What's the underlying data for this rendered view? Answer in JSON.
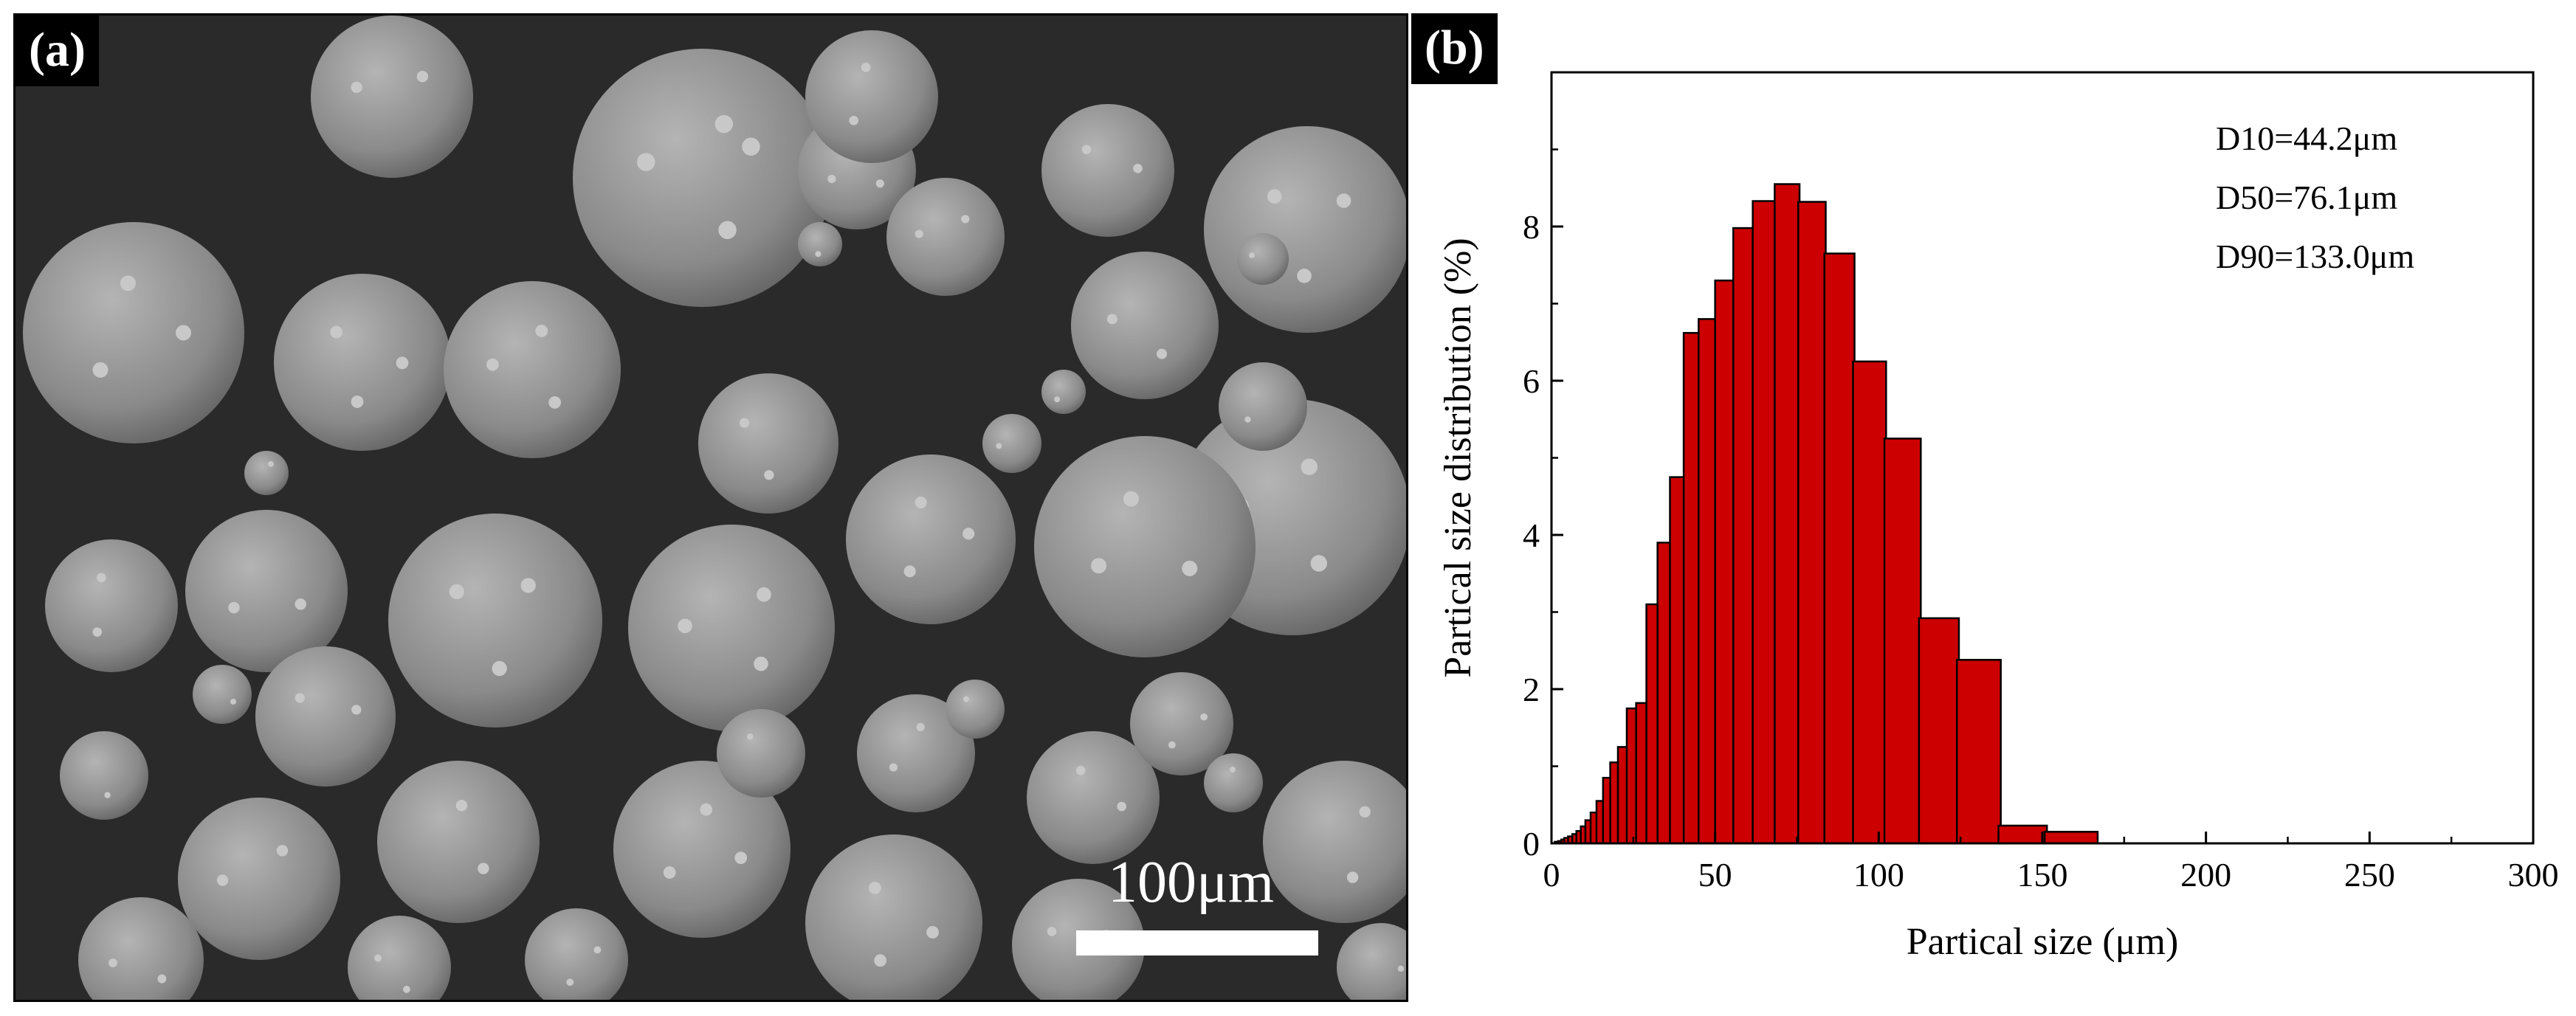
{
  "panel_a": {
    "label": "(a)",
    "scale_bar_text": "100μm"
  },
  "panel_b": {
    "label": "(b)"
  },
  "colors": {
    "bar_fill": "#cc0000",
    "bar_stroke": "#000000",
    "sem_background": "#2a2a2a",
    "particle": "#8c8c8c"
  },
  "chart_data": {
    "type": "bar",
    "xlabel": "Partical size (μm)",
    "ylabel": "Partical size distribution (%)",
    "xlim": [
      0,
      300
    ],
    "ylim": [
      0,
      10
    ],
    "x_ticks": [
      0,
      50,
      100,
      150,
      200,
      250,
      300
    ],
    "y_ticks": [
      0,
      2,
      4,
      6,
      8
    ],
    "annotations": [
      "D10=44.2μm",
      "D50=76.1μm",
      "D90=133.0μm"
    ],
    "grid": false,
    "bars": [
      {
        "x": 1.5,
        "w": 1.0,
        "y": 0.02
      },
      {
        "x": 2.5,
        "w": 1.0,
        "y": 0.03
      },
      {
        "x": 3.5,
        "w": 1.0,
        "y": 0.05
      },
      {
        "x": 4.5,
        "w": 1.2,
        "y": 0.07
      },
      {
        "x": 5.7,
        "w": 1.3,
        "y": 0.09
      },
      {
        "x": 7.0,
        "w": 1.3,
        "y": 0.12
      },
      {
        "x": 8.3,
        "w": 1.4,
        "y": 0.16
      },
      {
        "x": 9.7,
        "w": 1.5,
        "y": 0.22
      },
      {
        "x": 11.2,
        "w": 1.7,
        "y": 0.3
      },
      {
        "x": 12.9,
        "w": 1.9,
        "y": 0.4
      },
      {
        "x": 14.8,
        "w": 2.1,
        "y": 0.55
      },
      {
        "x": 16.9,
        "w": 2.3,
        "y": 0.85
      },
      {
        "x": 19.2,
        "w": 2.5,
        "y": 1.05
      },
      {
        "x": 21.7,
        "w": 2.8,
        "y": 1.25
      },
      {
        "x": 24.5,
        "w": 3.0,
        "y": 1.75
      },
      {
        "x": 27.5,
        "w": 3.3,
        "y": 1.82
      },
      {
        "x": 30.8,
        "w": 3.6,
        "y": 3.1
      },
      {
        "x": 34.4,
        "w": 4.0,
        "y": 3.9
      },
      {
        "x": 38.4,
        "w": 4.4,
        "y": 4.75
      },
      {
        "x": 42.8,
        "w": 4.8,
        "y": 6.62
      },
      {
        "x": 47.6,
        "w": 5.3,
        "y": 6.8
      },
      {
        "x": 52.9,
        "w": 5.8,
        "y": 7.3
      },
      {
        "x": 58.7,
        "w": 6.3,
        "y": 7.98
      },
      {
        "x": 65.0,
        "w": 7.0,
        "y": 8.33
      },
      {
        "x": 72.0,
        "w": 7.6,
        "y": 8.55
      },
      {
        "x": 79.6,
        "w": 8.4,
        "y": 8.32
      },
      {
        "x": 88.0,
        "w": 9.2,
        "y": 7.65
      },
      {
        "x": 97.2,
        "w": 10.1,
        "y": 6.25
      },
      {
        "x": 107.3,
        "w": 11.1,
        "y": 5.25
      },
      {
        "x": 118.4,
        "w": 12.2,
        "y": 2.92
      },
      {
        "x": 130.6,
        "w": 13.4,
        "y": 2.38
      },
      {
        "x": 144.0,
        "w": 14.8,
        "y": 0.23
      },
      {
        "x": 158.8,
        "w": 16.2,
        "y": 0.15
      }
    ]
  }
}
